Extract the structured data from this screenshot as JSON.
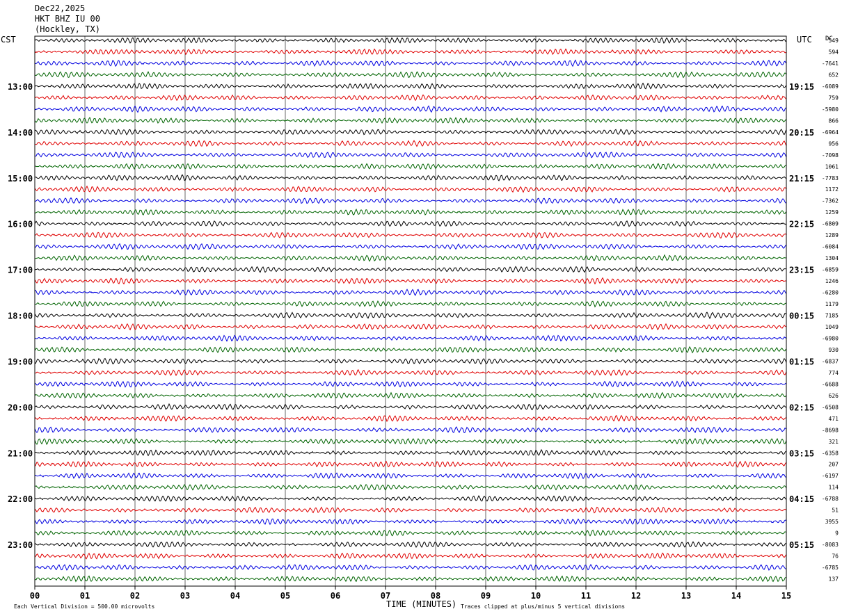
{
  "header": {
    "date": "Dec22,2025",
    "station": "HKT BHZ IU 00",
    "location": "(Hockley, TX)"
  },
  "left_zone": "CST",
  "right_zone": "UTC",
  "dc_label": "DC",
  "footer": {
    "scale_note": "Each Vertical Division =  500.00 microvolts",
    "xlabel": "TIME (MINUTES)",
    "clip_note": "Traces clipped at plus/minus 5 vertical divisions"
  },
  "chart_data": {
    "type": "line",
    "xlabel": "TIME (MINUTES)",
    "x_ticks": [
      "00",
      "01",
      "02",
      "03",
      "04",
      "05",
      "06",
      "07",
      "08",
      "09",
      "10",
      "11",
      "12",
      "13",
      "14",
      "15"
    ],
    "xlim": [
      0,
      15
    ],
    "trace_count": 48,
    "trace_colors": [
      "#000000",
      "#e00000",
      "#0000e0",
      "#006400"
    ],
    "left_hour_labels": [
      {
        "trace": 4,
        "label": "13:00"
      },
      {
        "trace": 8,
        "label": "14:00"
      },
      {
        "trace": 12,
        "label": "15:00"
      },
      {
        "trace": 16,
        "label": "16:00"
      },
      {
        "trace": 20,
        "label": "17:00"
      },
      {
        "trace": 24,
        "label": "18:00"
      },
      {
        "trace": 28,
        "label": "19:00"
      },
      {
        "trace": 32,
        "label": "20:00"
      },
      {
        "trace": 36,
        "label": "21:00"
      },
      {
        "trace": 40,
        "label": "22:00"
      },
      {
        "trace": 44,
        "label": "23:00"
      }
    ],
    "right_hour_labels": [
      {
        "trace": 4,
        "label": "19:15"
      },
      {
        "trace": 8,
        "label": "20:15"
      },
      {
        "trace": 12,
        "label": "21:15"
      },
      {
        "trace": 16,
        "label": "22:15"
      },
      {
        "trace": 20,
        "label": "23:15"
      },
      {
        "trace": 24,
        "label": "00:15"
      },
      {
        "trace": 28,
        "label": "01:15"
      },
      {
        "trace": 32,
        "label": "02:15"
      },
      {
        "trace": 36,
        "label": "03:15"
      },
      {
        "trace": 40,
        "label": "04:15"
      },
      {
        "trace": 44,
        "label": "05:15"
      }
    ],
    "dc_offsets": [
      "549",
      "594",
      "-7641",
      "652",
      "-6089",
      "759",
      "-5980",
      "866",
      "-6964",
      "956",
      "-7098",
      "1061",
      "-7783",
      "1172",
      "-7362",
      "1259",
      "-6809",
      "1289",
      "-6084",
      "1304",
      "-6859",
      "1246",
      "-6280",
      "1179",
      "7185",
      "1049",
      "-6980",
      "930",
      "-6837",
      "774",
      "-6688",
      "626",
      "-6508",
      "471",
      "-8698",
      "321",
      "-6358",
      "207",
      "-6197",
      "114",
      "-6788",
      "51",
      "3955",
      "9",
      "-8083",
      "76",
      "-6785",
      "137"
    ]
  }
}
